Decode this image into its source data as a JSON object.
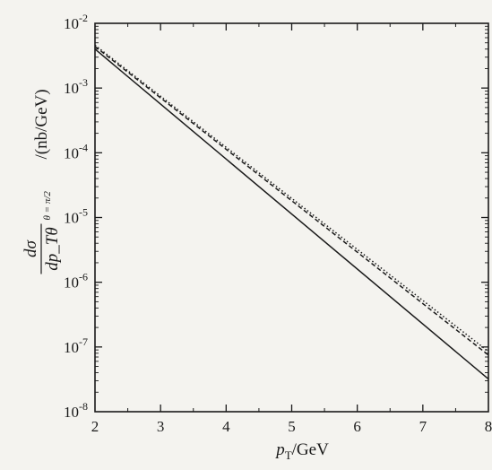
{
  "chart_data": {
    "type": "line",
    "xlabel": "p_T/GeV",
    "ylabel_numerator": "dσ",
    "ylabel_denominator": "dp_Tθ",
    "ylabel_subscript": "θ = π/2",
    "ylabel_unit": "/(nb/GeV)",
    "xlim": [
      2,
      8
    ],
    "ylim": [
      1e-08,
      0.01
    ],
    "yscale": "log",
    "x_ticks": [
      "2",
      "3",
      "4",
      "5",
      "6",
      "7",
      "8"
    ],
    "y_ticks": [
      {
        "base": "10",
        "exp": "-8"
      },
      {
        "base": "10",
        "exp": "-7"
      },
      {
        "base": "10",
        "exp": "-6"
      },
      {
        "base": "10",
        "exp": "-5"
      },
      {
        "base": "10",
        "exp": "-4"
      },
      {
        "base": "10",
        "exp": "-3"
      },
      {
        "base": "10",
        "exp": "-2"
      }
    ],
    "grid": false,
    "series": [
      {
        "style": "solid",
        "color": "#1a1a1a",
        "x": [
          2,
          8
        ],
        "y": [
          0.004,
          3.2e-08
        ]
      },
      {
        "style": "dashed",
        "color": "#1a1a1a",
        "x": [
          2,
          8
        ],
        "y": [
          0.0044,
          7.5e-08
        ]
      },
      {
        "style": "dotted",
        "color": "#1a1a1a",
        "x": [
          2,
          8
        ],
        "y": [
          0.0046,
          8.5e-08
        ]
      }
    ]
  }
}
